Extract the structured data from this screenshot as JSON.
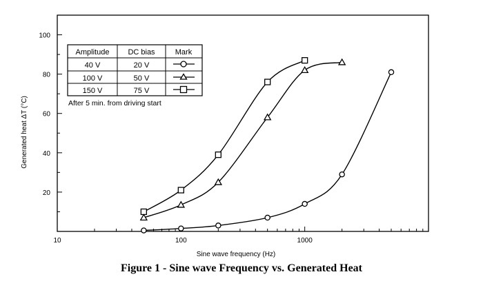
{
  "caption": "Figure 1 - Sine wave Frequency vs. Generated Heat",
  "chart_data": {
    "type": "line",
    "title": "",
    "xlabel": "Sine wave frequency (Hz)",
    "ylabel": "Generated heat ΔT (°C)",
    "xscale": "log",
    "xlim": [
      10,
      10000
    ],
    "ylim": [
      0,
      110
    ],
    "xticks": [
      10,
      100,
      1000
    ],
    "xtick_labels": [
      "10",
      "100",
      "1000"
    ],
    "yticks": [
      20,
      40,
      60,
      80,
      100
    ],
    "ytick_labels": [
      "20",
      "40",
      "60",
      "80",
      "100"
    ],
    "grid": false,
    "legend_table": {
      "placement": "top-left",
      "headers": [
        "Amplitude",
        "DC bias",
        "Mark"
      ],
      "rows": [
        [
          "40 V",
          "20 V",
          "circle"
        ],
        [
          "100 V",
          "50 V",
          "triangle"
        ],
        [
          "150 V",
          "75 V",
          "square"
        ]
      ],
      "note": "After 5 min. from driving start"
    },
    "series": [
      {
        "marker": "circle",
        "x": [
          50,
          100,
          200,
          500,
          1000,
          2000,
          5000
        ],
        "y": [
          0.5,
          1.5,
          3,
          7,
          14,
          29,
          81
        ]
      },
      {
        "marker": "triangle",
        "x": [
          50,
          100,
          200,
          500,
          1000,
          2000
        ],
        "y": [
          7,
          13.5,
          25,
          58,
          82,
          86
        ]
      },
      {
        "marker": "square",
        "x": [
          50,
          100,
          200,
          500,
          1000
        ],
        "y": [
          10,
          21,
          39,
          76,
          87
        ]
      }
    ]
  }
}
